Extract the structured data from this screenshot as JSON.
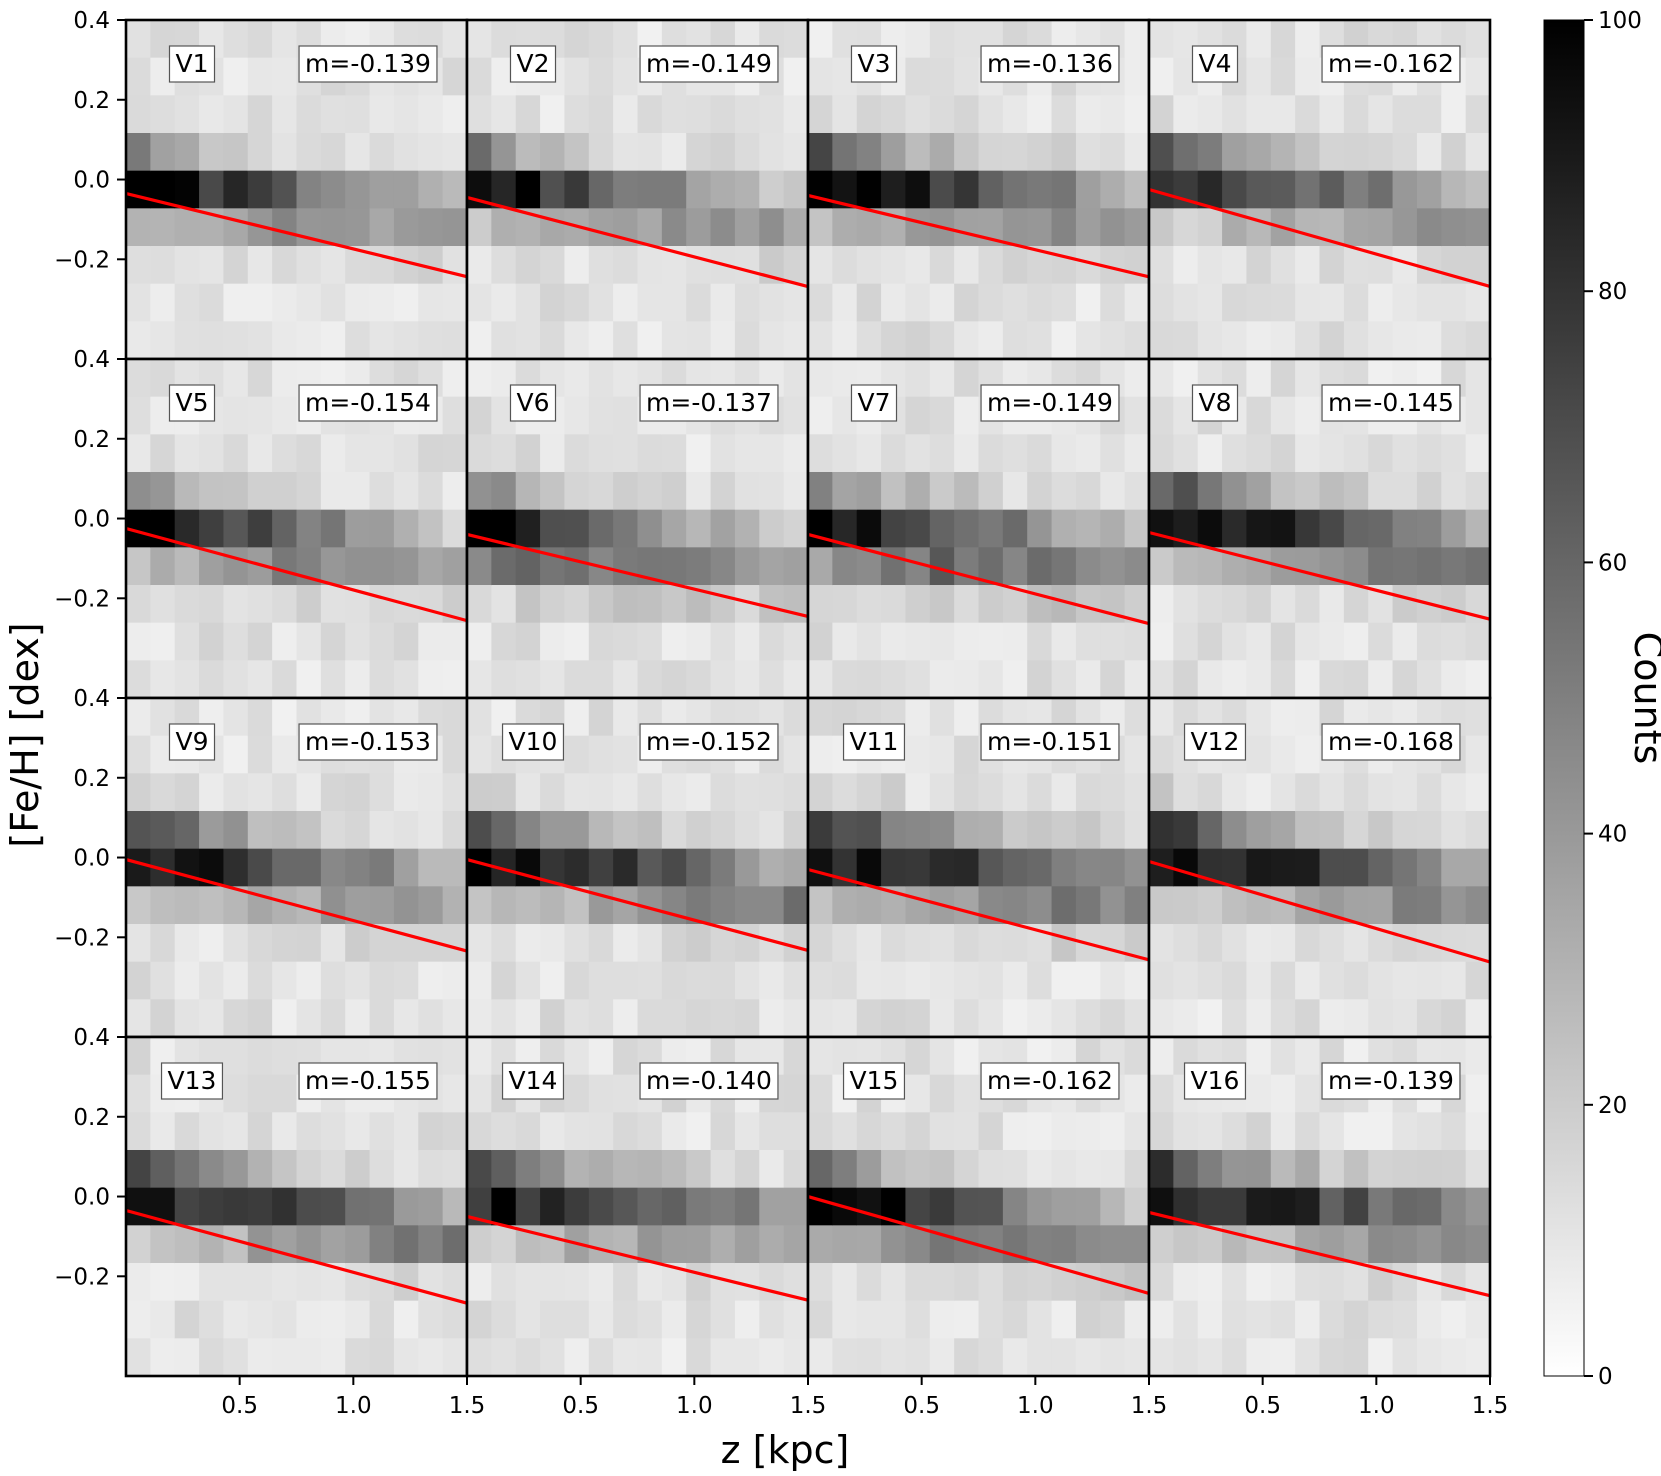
{
  "chart_data": {
    "type": "heatmap",
    "layout": "4x4 small multiples",
    "xlabel": "z [kpc]",
    "ylabel": "[Fe/H] [dex]",
    "xlim": [
      0.0,
      1.5
    ],
    "ylim": [
      -0.45,
      0.4
    ],
    "x_ticks": [
      0.5,
      1.0,
      1.5
    ],
    "x_tick_labels": [
      "0.5",
      "1.0",
      "1.5"
    ],
    "y_ticks": [
      0.4,
      0.2,
      0.0,
      -0.2
    ],
    "y_tick_labels": [
      "0.4",
      "0.2",
      "0.0",
      "−0.2"
    ],
    "colorbar": {
      "label": "Counts",
      "range": [
        0,
        100
      ],
      "ticks": [
        0,
        20,
        40,
        60,
        80,
        100
      ],
      "tick_labels": [
        "0",
        "20",
        "40",
        "60",
        "80",
        "100"
      ],
      "colormap": "Greys"
    },
    "fit_line_color": "#ff0000",
    "bins": {
      "nx": 14,
      "ny": 9,
      "fe_min": -0.45,
      "fe_max": 0.4
    },
    "panels": [
      {
        "label": "V1",
        "m_text": "m=-0.139",
        "slope": -0.139,
        "intercept": -0.035,
        "peak_fe": 0.0,
        "width": 0.055,
        "zscale": 0.9,
        "skew": 0.15
      },
      {
        "label": "V2",
        "m_text": "m=-0.149",
        "slope": -0.149,
        "intercept": -0.045,
        "peak_fe": 0.0,
        "width": 0.055,
        "zscale": 0.9,
        "skew": 0.1
      },
      {
        "label": "V3",
        "m_text": "m=-0.136",
        "slope": -0.136,
        "intercept": -0.04,
        "peak_fe": 0.01,
        "width": 0.06,
        "zscale": 0.7,
        "skew": 0.05
      },
      {
        "label": "V4",
        "m_text": "m=-0.162",
        "slope": -0.162,
        "intercept": -0.025,
        "peak_fe": 0.02,
        "width": 0.06,
        "zscale": 0.8,
        "skew": 0.05
      },
      {
        "label": "V5",
        "m_text": "m=-0.154",
        "slope": -0.154,
        "intercept": -0.025,
        "peak_fe": 0.0,
        "width": 0.055,
        "zscale": 0.8,
        "skew": 0.15
      },
      {
        "label": "V6",
        "m_text": "m=-0.137",
        "slope": -0.137,
        "intercept": -0.04,
        "peak_fe": -0.02,
        "width": 0.065,
        "zscale": 1.0,
        "skew": 0.2
      },
      {
        "label": "V7",
        "m_text": "m=-0.149",
        "slope": -0.149,
        "intercept": -0.04,
        "peak_fe": -0.01,
        "width": 0.065,
        "zscale": 0.7,
        "skew": 0.1
      },
      {
        "label": "V8",
        "m_text": "m=-0.145",
        "slope": -0.145,
        "intercept": -0.035,
        "peak_fe": 0.01,
        "width": 0.06,
        "zscale": 0.5,
        "skew": 0.05
      },
      {
        "label": "V9",
        "m_text": "m=-0.153",
        "slope": -0.153,
        "intercept": -0.005,
        "peak_fe": 0.02,
        "width": 0.06,
        "zscale": 0.8,
        "skew": 0.1
      },
      {
        "label": "V10",
        "m_text": "m=-0.152",
        "slope": -0.152,
        "intercept": -0.005,
        "peak_fe": 0.02,
        "width": 0.06,
        "zscale": 0.6,
        "skew": 0.05
      },
      {
        "label": "V11",
        "m_text": "m=-0.151",
        "slope": -0.151,
        "intercept": -0.03,
        "peak_fe": 0.02,
        "width": 0.065,
        "zscale": 0.6,
        "skew": 0.05
      },
      {
        "label": "V12",
        "m_text": "m=-0.168",
        "slope": -0.168,
        "intercept": -0.01,
        "peak_fe": 0.03,
        "width": 0.06,
        "zscale": 0.6,
        "skew": 0.05
      },
      {
        "label": "V13",
        "m_text": "m=-0.155",
        "slope": -0.155,
        "intercept": -0.035,
        "peak_fe": 0.02,
        "width": 0.06,
        "zscale": 0.6,
        "skew": 0.05
      },
      {
        "label": "V14",
        "m_text": "m=-0.140",
        "slope": -0.14,
        "intercept": -0.05,
        "peak_fe": 0.02,
        "width": 0.06,
        "zscale": 0.7,
        "skew": 0.05
      },
      {
        "label": "V15",
        "m_text": "m=-0.162",
        "slope": -0.162,
        "intercept": 0.0,
        "peak_fe": 0.0,
        "width": 0.06,
        "zscale": 0.7,
        "skew": 0.1
      },
      {
        "label": "V16",
        "m_text": "m=-0.139",
        "slope": -0.139,
        "intercept": -0.04,
        "peak_fe": 0.02,
        "width": 0.06,
        "zscale": 0.6,
        "skew": 0.05
      }
    ]
  }
}
